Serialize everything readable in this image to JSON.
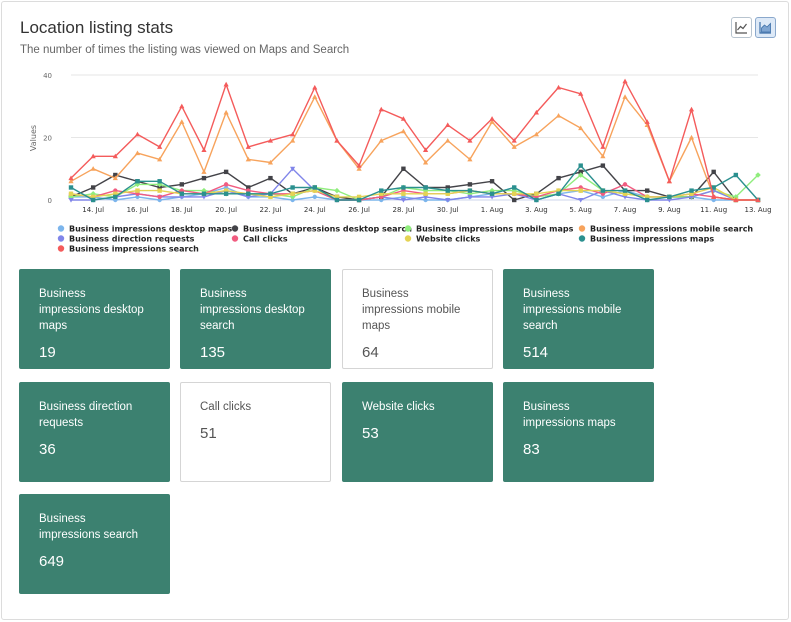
{
  "header": {
    "title": "Location listing stats",
    "subtitle": "The number of times the listing was viewed on Maps and Search"
  },
  "view_toggle": {
    "icons": [
      "line-chart-icon",
      "area-chart-icon"
    ],
    "active": "area-chart-icon"
  },
  "chart_data": {
    "type": "line",
    "ylabel": "Values",
    "xlabel": "",
    "ylim": [
      0,
      40
    ],
    "yticks": [
      0,
      20,
      40
    ],
    "grid": true,
    "legend_position": "bottom",
    "x": [
      "13. Jul",
      "14. Jul",
      "15. Jul",
      "16. Jul",
      "17. Jul",
      "18. Jul",
      "19. Jul",
      "20. Jul",
      "21. Jul",
      "22. Jul",
      "23. Jul",
      "24. Jul",
      "25. Jul",
      "26. Jul",
      "27. Jul",
      "28. Jul",
      "29. Jul",
      "30. Jul",
      "31. Jul",
      "1. Aug",
      "2. Aug",
      "3. Aug",
      "4. Aug",
      "5. Aug",
      "6. Aug",
      "7. Aug",
      "8. Aug",
      "9. Aug",
      "10. Aug",
      "11. Aug",
      "12. Aug",
      "13. Aug"
    ],
    "xticklabels": [
      "14. Jul",
      "16. Jul",
      "18. Jul",
      "20. Jul",
      "22. Jul",
      "24. Jul",
      "26. Jul",
      "28. Jul",
      "30. Jul",
      "1. Aug",
      "3. Aug",
      "5. Aug",
      "7. Aug",
      "9. Aug",
      "11. Aug",
      "13. Aug"
    ],
    "series": [
      {
        "name": "Business impressions desktop maps",
        "color": "#7cb5ec",
        "values": [
          1,
          1,
          0,
          1,
          0,
          1,
          2,
          4,
          1,
          1,
          0,
          1,
          0,
          0,
          0,
          1,
          0,
          0,
          1,
          2,
          4,
          0,
          2,
          3,
          1,
          3,
          1,
          1,
          1,
          0,
          0,
          0
        ]
      },
      {
        "name": "Business impressions desktop search",
        "color": "#434348",
        "values": [
          1,
          4,
          8,
          6,
          4,
          5,
          7,
          9,
          4,
          7,
          2,
          4,
          1,
          0,
          1,
          10,
          4,
          4,
          5,
          6,
          0,
          2,
          7,
          9,
          11,
          3,
          3,
          1,
          1,
          9,
          0,
          0
        ]
      },
      {
        "name": "Business impressions mobile maps",
        "color": "#90ed7d",
        "values": [
          1,
          2,
          1,
          5,
          5,
          3,
          3,
          2,
          2,
          2,
          1,
          4,
          3,
          0,
          1,
          4,
          3,
          3,
          2,
          3,
          3,
          1,
          2,
          8,
          3,
          2,
          1,
          1,
          1,
          3,
          1,
          8
        ]
      },
      {
        "name": "Business impressions mobile search",
        "color": "#f7a35c",
        "values": [
          6,
          10,
          7,
          15,
          13,
          25,
          9,
          28,
          13,
          12,
          19,
          33,
          19,
          10,
          19,
          22,
          12,
          19,
          13,
          25,
          17,
          21,
          27,
          23,
          14,
          33,
          24,
          6,
          20,
          1,
          0,
          0
        ]
      },
      {
        "name": "Business direction requests",
        "color": "#8085e9",
        "values": [
          0,
          0,
          1,
          2,
          1,
          1,
          1,
          3,
          1,
          2,
          10,
          3,
          0,
          0,
          1,
          0,
          1,
          0,
          1,
          1,
          2,
          0,
          2,
          0,
          3,
          1,
          0,
          0,
          1,
          3,
          0,
          0
        ]
      },
      {
        "name": "Call clicks",
        "color": "#f15c80",
        "values": [
          2,
          1,
          3,
          2,
          1,
          3,
          2,
          5,
          3,
          2,
          2,
          3,
          0,
          0,
          1,
          3,
          2,
          2,
          3,
          2,
          2,
          1,
          3,
          4,
          2,
          5,
          1,
          1,
          2,
          1,
          0,
          0
        ]
      },
      {
        "name": "Website clicks",
        "color": "#e4d354",
        "values": [
          2,
          1,
          2,
          3,
          3,
          2,
          2,
          3,
          2,
          1,
          2,
          3,
          1,
          1,
          2,
          2,
          2,
          2,
          3,
          2,
          2,
          2,
          3,
          3,
          3,
          2,
          1,
          1,
          2,
          4,
          0,
          0
        ]
      },
      {
        "name": "Business impressions maps",
        "color": "#2b908f",
        "values": [
          4,
          0,
          1,
          6,
          6,
          2,
          2,
          2,
          2,
          2,
          4,
          4,
          0,
          0,
          3,
          4,
          4,
          3,
          3,
          2,
          4,
          0,
          2,
          11,
          3,
          3,
          0,
          1,
          3,
          4,
          8,
          0
        ]
      },
      {
        "name": "Business impressions search",
        "color": "#f45b5b",
        "values": [
          7,
          14,
          14,
          21,
          17,
          30,
          16,
          37,
          17,
          19,
          21,
          36,
          19,
          11,
          29,
          26,
          16,
          24,
          19,
          26,
          19,
          28,
          36,
          34,
          17,
          38,
          25,
          6,
          29,
          1,
          0,
          0
        ]
      }
    ]
  },
  "stat_cards": [
    {
      "label": "Business impressions desktop maps",
      "value": "19",
      "style": "filled"
    },
    {
      "label": "Business impressions desktop search",
      "value": "135",
      "style": "filled"
    },
    {
      "label": "Business impressions mobile maps",
      "value": "64",
      "style": "outline"
    },
    {
      "label": "Business impressions mobile search",
      "value": "514",
      "style": "filled"
    },
    {
      "label": "Business direction requests",
      "value": "36",
      "style": "filled"
    },
    {
      "label": "Call clicks",
      "value": "51",
      "style": "outline"
    },
    {
      "label": "Website clicks",
      "value": "53",
      "style": "filled"
    },
    {
      "label": "Business impressions maps",
      "value": "83",
      "style": "filled"
    },
    {
      "label": "Business impressions search",
      "value": "649",
      "style": "filled"
    }
  ]
}
